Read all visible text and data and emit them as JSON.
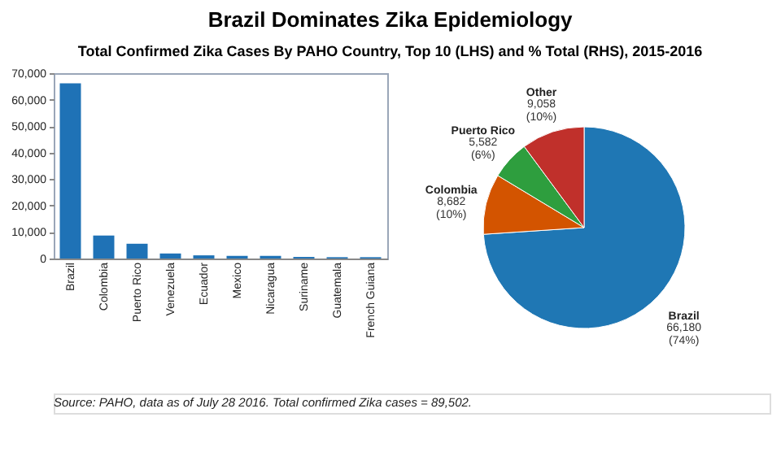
{
  "chart_data": [
    {
      "type": "bar",
      "title": "Brazil Dominates Zika Epidemiology",
      "subtitle": "Total Confirmed Zika Cases By PAHO Country, Top 10 (LHS) and % Total (RHS), 2015-2016",
      "categories": [
        "Brazil",
        "Colombia",
        "Puerto Rico",
        "Venezuela",
        "Ecuador",
        "Mexico",
        "Nicaragua",
        "Suriname",
        "Guatemala",
        "French Guiana"
      ],
      "values": [
        66180,
        8682,
        5582,
        1900,
        1200,
        1000,
        1000,
        600,
        500,
        500
      ],
      "color": "#1f72b6",
      "ylim": [
        0,
        70000
      ],
      "yticks": [
        0,
        {
          "value": 10000,
          "label": "10,000"
        },
        {
          "value": 20000,
          "label": "20,000"
        },
        {
          "value": 30000,
          "label": "30,000"
        },
        {
          "value": 40000,
          "label": "40,000"
        },
        {
          "value": 50000,
          "label": "50,000"
        },
        {
          "value": 60000,
          "label": "60,000"
        },
        {
          "value": 70000,
          "label": "70,000"
        }
      ],
      "grid": false,
      "legend": false,
      "annotations": [
        "Source: PAHO, data as of July 28 2016. Total confirmed Zika cases = 89,502."
      ]
    },
    {
      "type": "pie",
      "categories": [
        "Brazil",
        "Colombia",
        "Puerto Rico",
        "Other"
      ],
      "values": [
        66180,
        8682,
        5582,
        9058
      ],
      "colors": [
        "#1f77b4",
        "#d35400",
        "#2e9e3e",
        "#c0302b"
      ],
      "value_labels": [
        "66,180\n(74%)",
        "8,682\n(10%)",
        "5,582\n(6%)",
        "9,058\n(10%)"
      ],
      "legend": false
    }
  ]
}
